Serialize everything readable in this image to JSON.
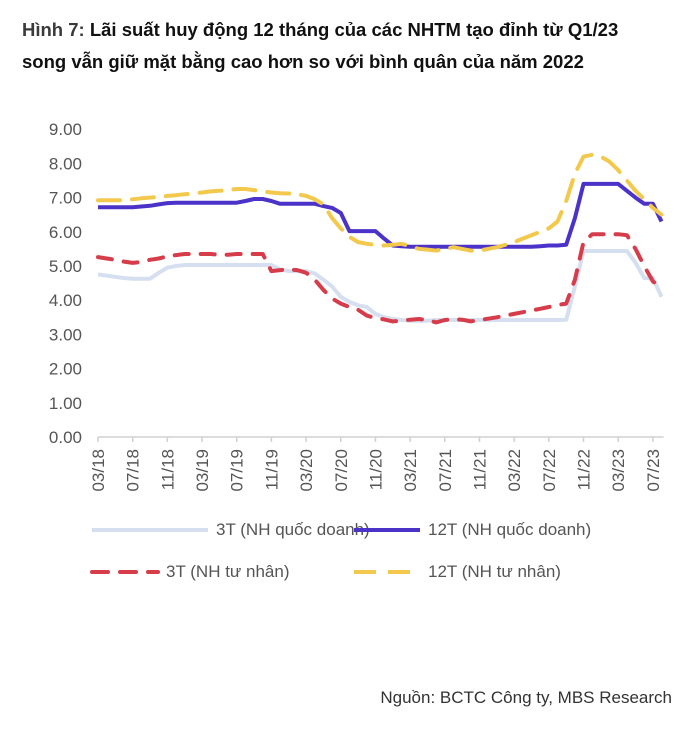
{
  "title": {
    "prefix": "Hình 7: ",
    "line1": "Lãi suất huy động 12 tháng của các NHTM tạo đỉnh từ Q1/23",
    "line2": "song vẫn giữ mặt bằng cao hơn so với bình quân của năm 2022"
  },
  "source": "Nguồn: BCTC Công ty, MBS Research",
  "chart_data": {
    "type": "line",
    "title": "Lãi suất huy động 12 tháng của các NHTM tạo đỉnh từ Q1/23 song vẫn giữ mặt bằng cao hơn so với bình quân của năm 2022",
    "xlabel": "",
    "ylabel": "",
    "ylim": [
      0,
      9
    ],
    "yticks": [
      "0.00",
      "1.00",
      "2.00",
      "3.00",
      "4.00",
      "5.00",
      "6.00",
      "7.00",
      "8.00",
      "9.00"
    ],
    "xticks": [
      "03/18",
      "07/18",
      "11/18",
      "03/19",
      "07/19",
      "11/19",
      "03/20",
      "07/20",
      "11/20",
      "03/21",
      "07/21",
      "11/21",
      "03/22",
      "07/22",
      "11/22",
      "03/23",
      "07/23"
    ],
    "x_start": "03/18",
    "x_end": "08/23",
    "grid": false,
    "legend_position": "bottom",
    "x": [
      "03/18",
      "04/18",
      "05/18",
      "06/18",
      "07/18",
      "08/18",
      "09/18",
      "10/18",
      "11/18",
      "12/18",
      "01/19",
      "02/19",
      "03/19",
      "04/19",
      "05/19",
      "06/19",
      "07/19",
      "08/19",
      "09/19",
      "10/19",
      "11/19",
      "12/19",
      "01/20",
      "02/20",
      "03/20",
      "04/20",
      "05/20",
      "06/20",
      "07/20",
      "08/20",
      "09/20",
      "10/20",
      "11/20",
      "12/20",
      "01/21",
      "02/21",
      "03/21",
      "04/21",
      "05/21",
      "06/21",
      "07/21",
      "08/21",
      "09/21",
      "10/21",
      "11/21",
      "12/21",
      "01/22",
      "02/22",
      "03/22",
      "04/22",
      "05/22",
      "06/22",
      "07/22",
      "08/22",
      "09/22",
      "10/22",
      "11/22",
      "12/22",
      "01/23",
      "02/23",
      "03/23",
      "04/23",
      "05/23",
      "06/23",
      "07/23",
      "08/23"
    ],
    "series": [
      {
        "name": "3T (NH quốc doanh)",
        "color": "#d5dff0",
        "style": "solid",
        "values": [
          4.75,
          4.72,
          4.68,
          4.65,
          4.63,
          4.63,
          4.63,
          4.8,
          4.95,
          5.0,
          5.03,
          5.03,
          5.03,
          5.03,
          5.03,
          5.03,
          5.03,
          5.03,
          5.03,
          5.03,
          5.03,
          4.9,
          4.85,
          4.85,
          4.85,
          4.78,
          4.6,
          4.4,
          4.1,
          3.95,
          3.85,
          3.8,
          3.6,
          3.5,
          3.45,
          3.42,
          3.4,
          3.4,
          3.4,
          3.42,
          3.42,
          3.42,
          3.42,
          3.42,
          3.42,
          3.42,
          3.42,
          3.42,
          3.42,
          3.42,
          3.42,
          3.42,
          3.42,
          3.42,
          3.43,
          4.4,
          5.44,
          5.44,
          5.44,
          5.44,
          5.44,
          5.44,
          5.1,
          4.65,
          4.65,
          4.1
        ]
      },
      {
        "name": "12T (NH quốc doanh)",
        "color": "#4b32c8",
        "style": "solid",
        "values": [
          6.72,
          6.72,
          6.72,
          6.72,
          6.72,
          6.74,
          6.76,
          6.8,
          6.84,
          6.85,
          6.85,
          6.85,
          6.85,
          6.85,
          6.85,
          6.85,
          6.85,
          6.9,
          6.96,
          6.96,
          6.9,
          6.82,
          6.82,
          6.82,
          6.82,
          6.82,
          6.75,
          6.7,
          6.55,
          6.02,
          6.02,
          6.02,
          6.02,
          5.8,
          5.6,
          5.58,
          5.56,
          5.56,
          5.56,
          5.56,
          5.56,
          5.56,
          5.56,
          5.56,
          5.56,
          5.56,
          5.56,
          5.56,
          5.56,
          5.56,
          5.56,
          5.58,
          5.6,
          5.6,
          5.62,
          6.4,
          7.4,
          7.4,
          7.4,
          7.4,
          7.4,
          7.2,
          7.0,
          6.82,
          6.82,
          6.3
        ]
      },
      {
        "name": "3T (NH tư nhân)",
        "color": "#d63c4a",
        "style": "dashed",
        "values": [
          5.26,
          5.22,
          5.18,
          5.13,
          5.09,
          5.12,
          5.18,
          5.22,
          5.28,
          5.32,
          5.35,
          5.35,
          5.35,
          5.35,
          5.33,
          5.33,
          5.35,
          5.35,
          5.35,
          5.35,
          4.85,
          4.88,
          4.9,
          4.88,
          4.8,
          4.6,
          4.3,
          4.05,
          3.9,
          3.8,
          3.72,
          3.55,
          3.48,
          3.44,
          3.38,
          3.4,
          3.43,
          3.45,
          3.42,
          3.35,
          3.42,
          3.45,
          3.43,
          3.38,
          3.42,
          3.46,
          3.5,
          3.55,
          3.6,
          3.65,
          3.7,
          3.75,
          3.8,
          3.86,
          3.9,
          4.6,
          5.7,
          5.93,
          5.93,
          5.93,
          5.93,
          5.9,
          5.5,
          5.0,
          4.55,
          4.35
        ]
      },
      {
        "name": "12T (NH tư nhân)",
        "color": "#f2c94c",
        "style": "dashed",
        "values": [
          6.92,
          6.92,
          6.92,
          6.92,
          6.95,
          6.98,
          7.0,
          7.02,
          7.05,
          7.07,
          7.1,
          7.12,
          7.15,
          7.18,
          7.2,
          7.22,
          7.25,
          7.25,
          7.22,
          7.18,
          7.15,
          7.13,
          7.12,
          7.1,
          7.05,
          6.95,
          6.8,
          6.4,
          6.1,
          5.85,
          5.7,
          5.65,
          5.62,
          5.6,
          5.62,
          5.65,
          5.58,
          5.5,
          5.48,
          5.45,
          5.5,
          5.55,
          5.5,
          5.45,
          5.45,
          5.5,
          5.55,
          5.62,
          5.7,
          5.8,
          5.9,
          6.0,
          6.1,
          6.3,
          6.9,
          7.7,
          8.2,
          8.25,
          8.2,
          8.05,
          7.8,
          7.5,
          7.2,
          6.95,
          6.7,
          6.5
        ]
      }
    ]
  }
}
